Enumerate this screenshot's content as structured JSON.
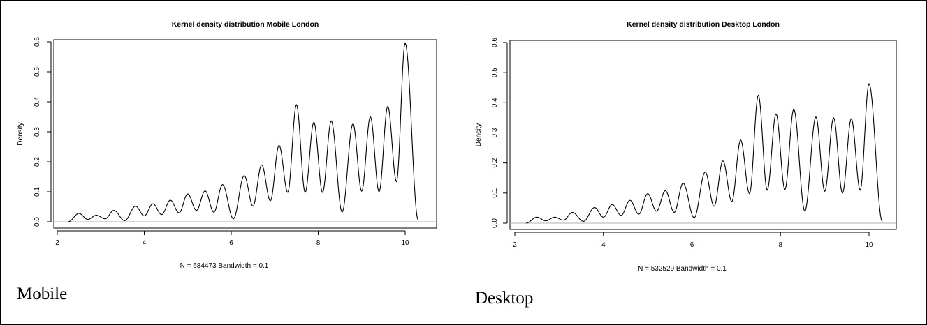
{
  "panels": [
    {
      "caption": "Mobile",
      "chart_data": {
        "type": "line",
        "title": "Kernel density distribution Mobile London",
        "xlabel": "N = 684473   Bandwidth = 0.1",
        "ylabel": "Density",
        "xlim": [
          2.25,
          10.3
        ],
        "ylim": [
          0.0,
          0.6
        ],
        "x_ticks": [
          2,
          4,
          6,
          8,
          10
        ],
        "y_ticks": [
          0.0,
          0.1,
          0.2,
          0.3,
          0.4,
          0.5,
          0.6
        ],
        "y_tick_labels": [
          "0.0",
          "0.1",
          "0.2",
          "0.3",
          "0.4",
          "0.5",
          "0.6"
        ],
        "baseline": 0,
        "peaks": [
          {
            "x": 2.5,
            "y": 0.028
          },
          {
            "x": 2.9,
            "y": 0.022
          },
          {
            "x": 3.3,
            "y": 0.038
          },
          {
            "x": 3.8,
            "y": 0.052
          },
          {
            "x": 4.2,
            "y": 0.06
          },
          {
            "x": 4.6,
            "y": 0.072
          },
          {
            "x": 5.0,
            "y": 0.093
          },
          {
            "x": 5.4,
            "y": 0.103
          },
          {
            "x": 5.8,
            "y": 0.124
          },
          {
            "x": 6.3,
            "y": 0.154
          },
          {
            "x": 6.7,
            "y": 0.19
          },
          {
            "x": 7.1,
            "y": 0.255
          },
          {
            "x": 7.5,
            "y": 0.39
          },
          {
            "x": 7.9,
            "y": 0.332
          },
          {
            "x": 8.3,
            "y": 0.336
          },
          {
            "x": 8.8,
            "y": 0.327
          },
          {
            "x": 9.2,
            "y": 0.35
          },
          {
            "x": 9.6,
            "y": 0.385
          },
          {
            "x": 10.0,
            "y": 0.596
          }
        ],
        "troughs": [
          {
            "x": 2.7,
            "y": 0.008
          },
          {
            "x": 3.1,
            "y": 0.01
          },
          {
            "x": 3.55,
            "y": 0.004
          },
          {
            "x": 4.0,
            "y": 0.02
          },
          {
            "x": 4.4,
            "y": 0.024
          },
          {
            "x": 4.8,
            "y": 0.03
          },
          {
            "x": 5.2,
            "y": 0.038
          },
          {
            "x": 5.6,
            "y": 0.032
          },
          {
            "x": 6.05,
            "y": 0.01
          },
          {
            "x": 6.5,
            "y": 0.052
          },
          {
            "x": 6.9,
            "y": 0.07
          },
          {
            "x": 7.3,
            "y": 0.098
          },
          {
            "x": 7.7,
            "y": 0.098
          },
          {
            "x": 8.1,
            "y": 0.098
          },
          {
            "x": 8.55,
            "y": 0.032
          },
          {
            "x": 9.0,
            "y": 0.102
          },
          {
            "x": 9.4,
            "y": 0.1
          },
          {
            "x": 9.8,
            "y": 0.134
          }
        ],
        "x_end": 10.3,
        "y_end": 0.005
      }
    },
    {
      "caption": "Desktop",
      "chart_data": {
        "type": "line",
        "title": "Kernel density distribution Desktop London",
        "xlabel": "N = 532529   Bandwidth = 0.1",
        "ylabel": "Density",
        "xlim": [
          2.25,
          10.3
        ],
        "ylim": [
          0.0,
          0.6
        ],
        "x_ticks": [
          2,
          4,
          6,
          8,
          10
        ],
        "y_ticks": [
          0.0,
          0.1,
          0.2,
          0.3,
          0.4,
          0.5,
          0.6
        ],
        "y_tick_labels": [
          "0.0",
          "0.1",
          "0.2",
          "0.3",
          "0.4",
          "0.5",
          "0.6"
        ],
        "baseline": 0,
        "peaks": [
          {
            "x": 2.5,
            "y": 0.02
          },
          {
            "x": 2.9,
            "y": 0.02
          },
          {
            "x": 3.3,
            "y": 0.036
          },
          {
            "x": 3.8,
            "y": 0.052
          },
          {
            "x": 4.2,
            "y": 0.062
          },
          {
            "x": 4.6,
            "y": 0.076
          },
          {
            "x": 5.0,
            "y": 0.098
          },
          {
            "x": 5.4,
            "y": 0.108
          },
          {
            "x": 5.8,
            "y": 0.133
          },
          {
            "x": 6.3,
            "y": 0.17
          },
          {
            "x": 6.7,
            "y": 0.207
          },
          {
            "x": 7.1,
            "y": 0.276
          },
          {
            "x": 7.5,
            "y": 0.425
          },
          {
            "x": 7.9,
            "y": 0.363
          },
          {
            "x": 8.3,
            "y": 0.378
          },
          {
            "x": 8.8,
            "y": 0.353
          },
          {
            "x": 9.2,
            "y": 0.35
          },
          {
            "x": 9.6,
            "y": 0.347
          },
          {
            "x": 10.0,
            "y": 0.463
          }
        ],
        "troughs": [
          {
            "x": 2.7,
            "y": 0.008
          },
          {
            "x": 3.1,
            "y": 0.01
          },
          {
            "x": 3.55,
            "y": 0.006
          },
          {
            "x": 4.0,
            "y": 0.02
          },
          {
            "x": 4.4,
            "y": 0.026
          },
          {
            "x": 4.8,
            "y": 0.03
          },
          {
            "x": 5.2,
            "y": 0.04
          },
          {
            "x": 5.6,
            "y": 0.036
          },
          {
            "x": 6.05,
            "y": 0.018
          },
          {
            "x": 6.5,
            "y": 0.056
          },
          {
            "x": 6.9,
            "y": 0.072
          },
          {
            "x": 7.3,
            "y": 0.098
          },
          {
            "x": 7.7,
            "y": 0.11
          },
          {
            "x": 8.1,
            "y": 0.112
          },
          {
            "x": 8.55,
            "y": 0.04
          },
          {
            "x": 9.0,
            "y": 0.106
          },
          {
            "x": 9.4,
            "y": 0.1
          },
          {
            "x": 9.8,
            "y": 0.11
          }
        ],
        "x_end": 10.3,
        "y_end": 0.005
      }
    }
  ]
}
